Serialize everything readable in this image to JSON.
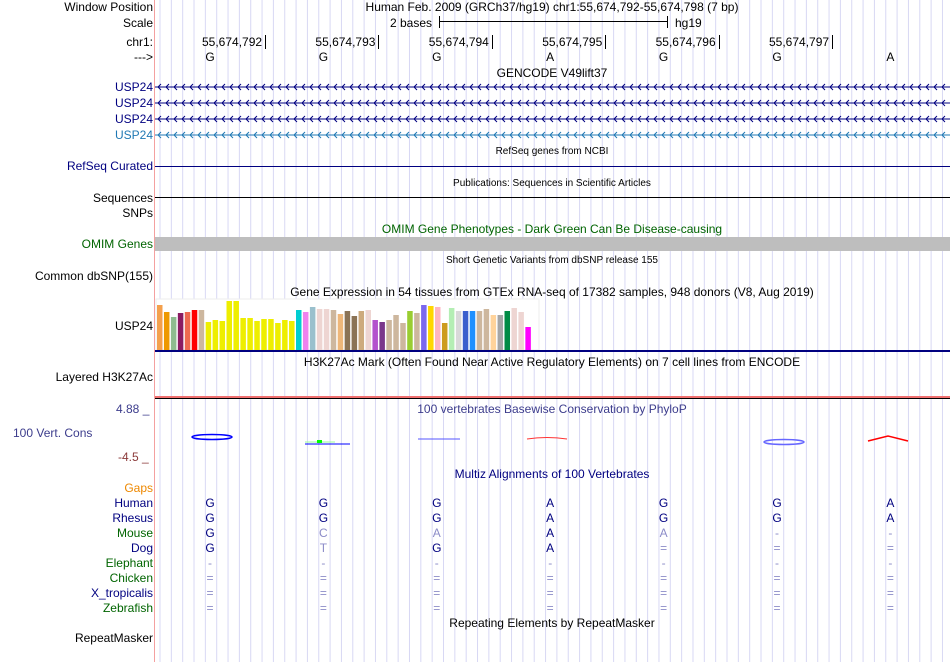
{
  "header": {
    "window_position_label": "Window Position",
    "title": "Human Feb. 2009 (GRCh37/hg19)   chr1:55,674,792-55,674,798 (7 bp)",
    "scale_label": "Scale",
    "scale_value": "2 bases",
    "scale_db": "hg19",
    "chr_label": "chr1:",
    "strand_label": "--->"
  },
  "positions": [
    "55,674,792",
    "55,674,793",
    "55,674,794",
    "55,674,795",
    "55,674,796",
    "55,674,797"
  ],
  "bases": [
    "G",
    "G",
    "G",
    "A",
    "G",
    "G",
    "A"
  ],
  "gencode": {
    "title": "GENCODE V49lift37",
    "genes": [
      "USP24",
      "USP24",
      "USP24",
      "USP24"
    ]
  },
  "refseq": {
    "title": "RefSeq genes from NCBI",
    "label": "RefSeq Curated"
  },
  "pubs": {
    "title": "Publications: Sequences in Scientific Articles",
    "label": "Sequences"
  },
  "snps": {
    "label": "SNPs"
  },
  "omim": {
    "title": "OMIM Gene Phenotypes - Dark Green Can Be Disease-causing",
    "label": "OMIM Genes"
  },
  "dbsnp": {
    "title": "Short Genetic Variants from dbSNP release 155",
    "label": "Common dbSNP(155)"
  },
  "gtex": {
    "title": "Gene Expression in 54 tissues from GTEx RNA-seq of 17382 samples, 948 donors (V8, Aug 2019)",
    "label": "USP24",
    "colors": [
      "#F4A04D",
      "#EE9900",
      "#8FBC8F",
      "#8B1C62",
      "#EE6A50",
      "#FF0000",
      "#CDB79E",
      "#EEEE00",
      "#EEEE00",
      "#EEEE00",
      "#EEEE00",
      "#EEEE00",
      "#EEEE00",
      "#EEEE00",
      "#EEEE00",
      "#EEEE00",
      "#EEEE00",
      "#EEEE00",
      "#EEEE00",
      "#EEEE00",
      "#00CED1",
      "#EE82EE",
      "#9AC0CD",
      "#EED5D2",
      "#EED5D2",
      "#CDB79E",
      "#EEB77A",
      "#8B7355",
      "#8B7355",
      "#CDAA7D",
      "#EED5D2",
      "#B452CD",
      "#7A378B",
      "#CDB79E",
      "#CDB79E",
      "#CDB79E",
      "#9ACD32",
      "#CDB79E",
      "#7B68EE",
      "#FFD700",
      "#FFB6C1",
      "#CD9B1D",
      "#B4EEB4",
      "#D9D9D9",
      "#3A5FCD",
      "#1E90FF",
      "#CDB79E",
      "#CDB79E",
      "#FFD39B",
      "#A6A6A6",
      "#008B45",
      "#EED5D2",
      "#EED5D2",
      "#FF00FF"
    ],
    "values": [
      45,
      38,
      33,
      37,
      38,
      40,
      40,
      28,
      30,
      29,
      49,
      49,
      32,
      32,
      29,
      31,
      31,
      27,
      30,
      29,
      40,
      38,
      43,
      41,
      41,
      40,
      36,
      39,
      34,
      39,
      40,
      30,
      28,
      30,
      35,
      27,
      39,
      37,
      45,
      44,
      43,
      27,
      42,
      39,
      39,
      39,
      39,
      41,
      35,
      35,
      39,
      42,
      38,
      23
    ]
  },
  "h3k27ac": {
    "title": "H3K27Ac Mark (Often Found Near Active Regulatory Elements) on 7 cell lines from ENCODE",
    "label": "Layered H3K27Ac"
  },
  "cons": {
    "title": "100 vertebrates Basewise Conservation by PhyloP",
    "label": "100 Vert. Cons",
    "ymax": "4.88 _",
    "ymin": "-4.5 _"
  },
  "multiz": {
    "title": "Multiz Alignments of 100 Vertebrates",
    "gaps_label": "Gaps",
    "species": [
      {
        "name": "Human",
        "color": "#000080",
        "bases": [
          "G",
          "G",
          "G",
          "A",
          "G",
          "G",
          "A"
        ]
      },
      {
        "name": "Rhesus",
        "color": "#000080",
        "bases": [
          "G",
          "G",
          "G",
          "A",
          "G",
          "G",
          "A"
        ]
      },
      {
        "name": "Mouse",
        "color": "#006400",
        "bases": [
          "G",
          "C",
          "A",
          "A",
          "A",
          "-",
          "-"
        ]
      },
      {
        "name": "Dog",
        "color": "#000080",
        "bases": [
          "G",
          "T",
          "G",
          "A",
          "=",
          "=",
          "="
        ]
      },
      {
        "name": "Elephant",
        "color": "#006400",
        "bases": [
          "-",
          "-",
          "-",
          "-",
          "-",
          "-",
          "-"
        ]
      },
      {
        "name": "Chicken",
        "color": "#006400",
        "bases": [
          "=",
          "=",
          "=",
          "=",
          "=",
          "=",
          "="
        ]
      },
      {
        "name": "X_tropicalis",
        "color": "#000080",
        "bases": [
          "=",
          "=",
          "=",
          "=",
          "=",
          "=",
          "="
        ]
      },
      {
        "name": "Zebrafish",
        "color": "#006400",
        "bases": [
          "=",
          "=",
          "=",
          "=",
          "=",
          "=",
          "="
        ]
      }
    ]
  },
  "rmsk": {
    "title": "Repeating Elements by RepeatMasker",
    "label": "RepeatMasker"
  }
}
